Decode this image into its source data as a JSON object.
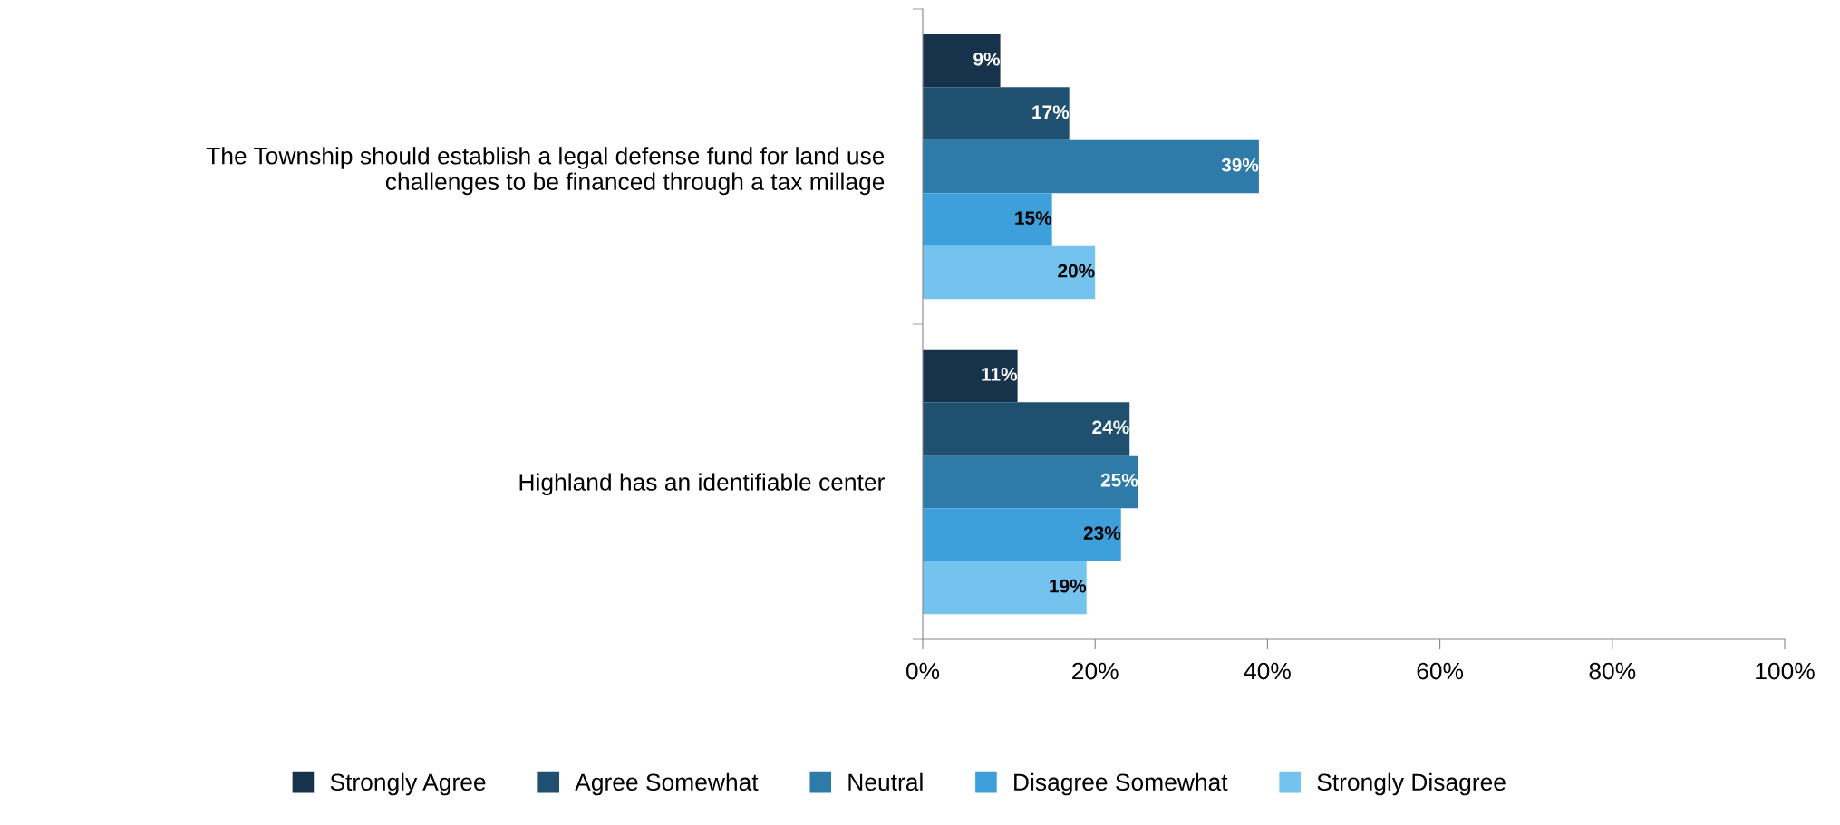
{
  "chart_data": {
    "type": "bar",
    "orientation": "horizontal",
    "categories": [
      "The Township should establish a legal defense fund for land use\nchallenges to be financed through a tax millage",
      "Highland has an identifiable center"
    ],
    "series": [
      {
        "name": "Strongly Agree",
        "color": "#17324b",
        "values": [
          9,
          11
        ],
        "value_labels": [
          "9%",
          "11%"
        ]
      },
      {
        "name": "Agree Somewhat",
        "color": "#1f5070",
        "values": [
          17,
          24
        ],
        "value_labels": [
          "17%",
          "24%"
        ]
      },
      {
        "name": "Neutral",
        "color": "#2e7aa8",
        "values": [
          39,
          25
        ],
        "value_labels": [
          "39%",
          "25%"
        ]
      },
      {
        "name": "Disagree Somewhat",
        "color": "#3ea0da",
        "values": [
          15,
          23
        ],
        "value_labels": [
          "15%",
          "23%"
        ]
      },
      {
        "name": "Strongly Disagree",
        "color": "#74c3ef",
        "values": [
          20,
          19
        ],
        "value_labels": [
          "20%",
          "19%"
        ]
      }
    ],
    "xlim": [
      0,
      100
    ],
    "xticks": [
      {
        "value": 0,
        "label": "0%"
      },
      {
        "value": 20,
        "label": "20%"
      },
      {
        "value": 40,
        "label": "40%"
      },
      {
        "value": 60,
        "label": "60%"
      },
      {
        "value": 80,
        "label": "80%"
      },
      {
        "value": 100,
        "label": "100%"
      }
    ],
    "legend": "bottom",
    "grid": false
  }
}
